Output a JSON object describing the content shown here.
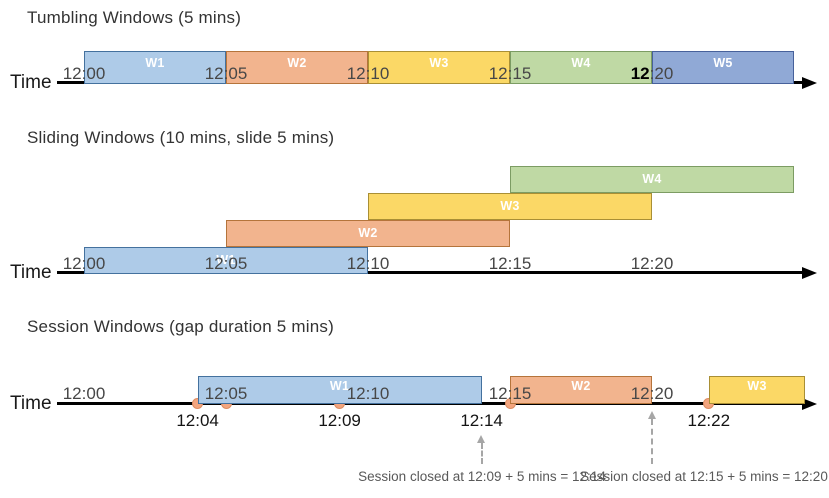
{
  "colors": {
    "axis": "#000000",
    "tick_text": "#474747",
    "title_text": "#333333",
    "event_dot_fill": "#f3a57f",
    "event_dot_border": "#dd8d62",
    "annotation_gray": "#a6a6a6",
    "window_styles": {
      "blue_light": {
        "fill": "#aecbe8",
        "border": "#44719e"
      },
      "orange": {
        "fill": "#f2b48e",
        "border": "#b5743b"
      },
      "yellow": {
        "fill": "#fbd866",
        "border": "#a98f35"
      },
      "green": {
        "fill": "#bfd9a4",
        "border": "#7c9c63"
      },
      "blue_medium": {
        "fill": "#90a9d6",
        "border": "#47619b"
      }
    }
  },
  "sections": [
    {
      "id": "tumbling",
      "title": "Tumbling Windows (5 mins)",
      "axis_label": "Time",
      "ticks": [
        {
          "label": "12:00",
          "min": 0
        },
        {
          "label": "12:05",
          "min": 5
        },
        {
          "label": "12:10",
          "min": 10
        },
        {
          "label": "12:15",
          "min": 15
        },
        {
          "label": "12:20",
          "min": 20,
          "emph": true
        }
      ],
      "windows": [
        {
          "label": "W1",
          "start": "12:00",
          "end": "12:05",
          "start_min": 0,
          "end_min": 5,
          "color": "blue_light"
        },
        {
          "label": "W2",
          "start": "12:05",
          "end": "12:10",
          "start_min": 5,
          "end_min": 10,
          "color": "orange"
        },
        {
          "label": "W3",
          "start": "12:10",
          "end": "12:15",
          "start_min": 10,
          "end_min": 15,
          "color": "yellow"
        },
        {
          "label": "W4",
          "start": "12:15",
          "end": "12:20",
          "start_min": 15,
          "end_min": 20,
          "color": "green"
        },
        {
          "label": "W5",
          "start": "12:20",
          "end": "12:25",
          "start_min": 20,
          "end_min": 25,
          "color": "blue_medium"
        }
      ]
    },
    {
      "id": "sliding",
      "title": "Sliding Windows (10 mins, slide 5 mins)",
      "axis_label": "Time",
      "ticks": [
        {
          "label": "12:00",
          "min": 0
        },
        {
          "label": "12:05",
          "min": 5
        },
        {
          "label": "12:10",
          "min": 10
        },
        {
          "label": "12:15",
          "min": 15
        },
        {
          "label": "12:20",
          "min": 20
        }
      ],
      "windows": [
        {
          "label": "W1",
          "start": "12:00",
          "end": "12:10",
          "start_min": 0,
          "end_min": 10,
          "color": "blue_light",
          "row": 0
        },
        {
          "label": "W2",
          "start": "12:05",
          "end": "12:15",
          "start_min": 5,
          "end_min": 15,
          "color": "orange",
          "row": 1
        },
        {
          "label": "W3",
          "start": "12:10",
          "end": "12:20",
          "start_min": 10,
          "end_min": 20,
          "color": "yellow",
          "row": 2
        },
        {
          "label": "W4",
          "start": "12:15",
          "end": "12:25",
          "start_min": 15,
          "end_min": 25,
          "color": "green",
          "row": 3
        }
      ]
    },
    {
      "id": "session",
      "title": "Session Windows (gap duration 5 mins)",
      "axis_label": "Time",
      "ticks": [
        {
          "label": "12:00",
          "min": 0
        },
        {
          "label": "12:05",
          "min": 5
        },
        {
          "label": "12:10",
          "min": 10
        },
        {
          "label": "12:15",
          "min": 15
        },
        {
          "label": "12:20",
          "min": 20
        }
      ],
      "windows": [
        {
          "label": "W1",
          "start": "12:04",
          "end": "12:14",
          "start_min": 4,
          "end_min": 14,
          "color": "blue_light"
        },
        {
          "label": "W2",
          "start": "12:15",
          "end": "12:20",
          "start_min": 15,
          "end_min": 20,
          "color": "orange"
        },
        {
          "label": "W3",
          "start": "12:22",
          "end": "",
          "start_min": 22,
          "end_min": 25.4,
          "color": "yellow",
          "open_ended": true
        }
      ],
      "events": [
        {
          "time": "12:04",
          "min": 4
        },
        {
          "time": "12:05",
          "min": 5
        },
        {
          "time": "12:09",
          "min": 9
        },
        {
          "time": "12:15",
          "min": 15
        },
        {
          "time": "12:22",
          "min": 22
        }
      ],
      "sub_labels": [
        {
          "text": "12:04",
          "min": 4
        },
        {
          "text": "12:09",
          "min": 9
        },
        {
          "text": "12:14",
          "min": 14
        },
        {
          "text": "12:22",
          "min": 22
        }
      ],
      "annotations": [
        {
          "text": "Session closed at 12:09 + 5 mins = 12:14"
        },
        {
          "text": "Session closed at 12:15 + 5 mins = 12:20"
        }
      ]
    }
  ]
}
